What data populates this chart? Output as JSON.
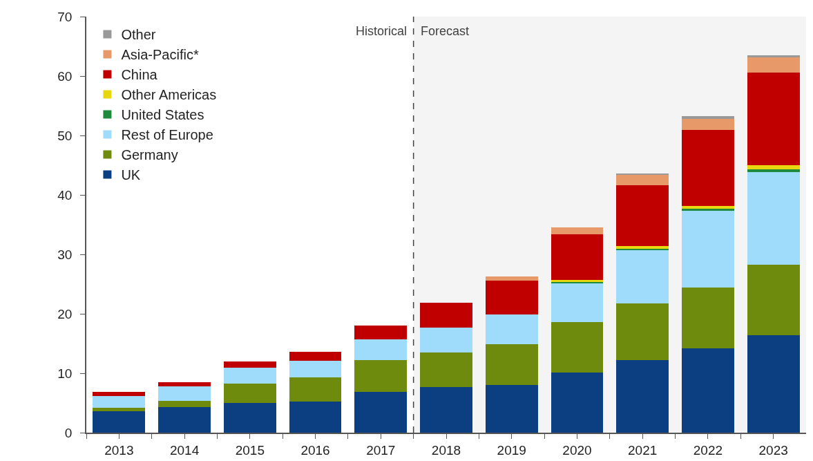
{
  "chart_data": {
    "type": "bar",
    "stacked": true,
    "x": [
      2013,
      2014,
      2015,
      2016,
      2017,
      2018,
      2019,
      2020,
      2021,
      2022,
      2023
    ],
    "series": [
      {
        "name": "UK",
        "color": "#0b3f82",
        "values": [
          3.6,
          4.3,
          5.0,
          5.2,
          6.9,
          7.7,
          8.0,
          10.1,
          12.2,
          14.2,
          16.4
        ]
      },
      {
        "name": "Germany",
        "color": "#6e8b0e",
        "values": [
          0.6,
          1.0,
          3.3,
          4.1,
          5.3,
          5.8,
          6.9,
          8.5,
          9.5,
          10.2,
          11.9
        ]
      },
      {
        "name": "Rest of Europe",
        "color": "#9fdcfb",
        "values": [
          2.0,
          2.5,
          2.6,
          2.8,
          3.5,
          4.2,
          5.0,
          6.6,
          9.0,
          12.9,
          15.5
        ]
      },
      {
        "name": "United States",
        "color": "#1e8a3c",
        "values": [
          0,
          0,
          0,
          0,
          0,
          0,
          0,
          0.1,
          0.2,
          0.4,
          0.5
        ]
      },
      {
        "name": "Other Americas",
        "color": "#e8d60e",
        "values": [
          0,
          0,
          0,
          0,
          0,
          0,
          0,
          0.4,
          0.5,
          0.4,
          0.7
        ]
      },
      {
        "name": "China",
        "color": "#c00000",
        "values": [
          0.7,
          0.7,
          1.1,
          1.5,
          2.3,
          4.2,
          5.7,
          7.7,
          10.2,
          12.8,
          15.6
        ]
      },
      {
        "name": "Asia-Pacific*",
        "color": "#e8996a",
        "values": [
          0,
          0,
          0,
          0,
          0,
          0,
          0.7,
          1.1,
          1.8,
          1.9,
          2.5
        ]
      },
      {
        "name": "Other",
        "color": "#999999",
        "values": [
          0,
          0,
          0,
          0,
          0,
          0,
          0,
          0,
          0.2,
          0.4,
          0.4
        ]
      }
    ],
    "xlim": [
      2012.5,
      2023.5
    ],
    "xticks": [
      {
        "value": 2012.5,
        "label": null
      },
      2013,
      {
        "value": 2013.5,
        "label": null
      },
      2014,
      {
        "value": 2014.5,
        "label": null
      },
      2015,
      {
        "value": 2015.5,
        "label": null
      },
      2016,
      {
        "value": 2016.5,
        "label": null
      },
      2017,
      {
        "value": 2017.5,
        "label": null
      },
      2018,
      {
        "value": 2018.5,
        "label": null
      },
      2019,
      {
        "value": 2019.5,
        "label": null
      },
      2020,
      {
        "value": 2020.5,
        "label": null
      },
      2021,
      {
        "value": 2021.5,
        "label": null
      },
      2022,
      {
        "value": 2022.5,
        "label": null
      },
      2023
    ],
    "ylim": [
      0,
      70
    ],
    "yticks": [
      0,
      10,
      20,
      30,
      40,
      50,
      60,
      70
    ],
    "grid": false,
    "legend": "top left",
    "ref_lines": [
      {
        "axis": "x",
        "value": 2017.5,
        "label": "Historical",
        "color": "#404040",
        "line_style": "dashed"
      }
    ],
    "bands": [
      {
        "axis": "x",
        "from": 2017.5,
        "to": 2023.5,
        "label": "Forecast",
        "color": "#f4f4f4"
      }
    ]
  }
}
